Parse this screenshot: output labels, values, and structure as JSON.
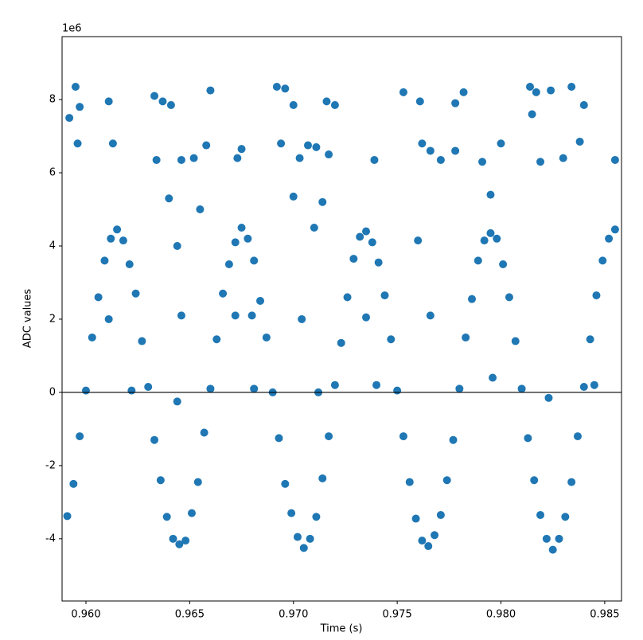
{
  "chart_data": {
    "type": "scatter",
    "xlabel": "Time (s)",
    "ylabel": "ADC values",
    "y_offset_label": "1e6",
    "color": "#1f77b4",
    "grid": false,
    "hline": 0,
    "xlim": [
      0.95885,
      0.98581
    ],
    "ylim": [
      -5.7,
      9.72
    ],
    "xticks": [
      {
        "value": 0.96,
        "label": "0.960"
      },
      {
        "value": 0.965,
        "label": "0.965"
      },
      {
        "value": 0.97,
        "label": "0.970"
      },
      {
        "value": 0.975,
        "label": "0.975"
      },
      {
        "value": 0.98,
        "label": "0.980"
      },
      {
        "value": 0.985,
        "label": "0.985"
      }
    ],
    "yticks": [
      -4,
      -2,
      0,
      2,
      4,
      6,
      8
    ],
    "x": [
      0.9591,
      0.9594,
      0.9597,
      0.96,
      0.9603,
      0.9606,
      0.9609,
      0.9612,
      0.9615,
      0.9618,
      0.9621,
      0.9624,
      0.9627,
      0.963,
      0.9633,
      0.9636,
      0.9639,
      0.9642,
      0.9645,
      0.9648,
      0.9651,
      0.9654,
      0.9657,
      0.966,
      0.9663,
      0.9666,
      0.9669,
      0.9672,
      0.9675,
      0.9678,
      0.9681,
      0.9684,
      0.9687,
      0.969,
      0.9693,
      0.9696,
      0.9699,
      0.9702,
      0.9705,
      0.9708,
      0.9711,
      0.9714,
      0.9717,
      0.972,
      0.9723,
      0.9726,
      0.9729,
      0.9732,
      0.9735,
      0.9738,
      0.9741,
      0.9744,
      0.9747,
      0.975,
      0.9753,
      0.9756,
      0.9759,
      0.9762,
      0.9765,
      0.9768,
      0.9771,
      0.9774,
      0.9777,
      0.978,
      0.9783,
      0.9786,
      0.9789,
      0.9792,
      0.9795,
      0.9798,
      0.9801,
      0.9804,
      0.9807,
      0.981,
      0.9813,
      0.9816,
      0.9819,
      0.9822,
      0.9825,
      0.9828,
      0.9831,
      0.9834,
      0.9837,
      0.984,
      0.9843,
      0.9846,
      0.9849,
      0.9852,
      0.9855,
      0.9592,
      0.9595,
      0.9597,
      0.9596,
      0.9611,
      0.9613,
      0.9633,
      0.9637,
      0.9641,
      0.9634,
      0.9646,
      0.9652,
      0.966,
      0.9658,
      0.9673,
      0.9675,
      0.9692,
      0.9696,
      0.97,
      0.9694,
      0.9703,
      0.9707,
      0.9711,
      0.9716,
      0.972,
      0.9717,
      0.9739,
      0.9753,
      0.9761,
      0.9762,
      0.9766,
      0.9771,
      0.9778,
      0.9778,
      0.9782,
      0.9791,
      0.98,
      0.9814,
      0.9817,
      0.9815,
      0.9819,
      0.9824,
      0.983,
      0.9834,
      0.9838,
      0.984,
      0.9855,
      0.9644,
      0.9646,
      0.964,
      0.9655,
      0.968,
      0.9672,
      0.9704,
      0.971,
      0.9714,
      0.97,
      0.9735,
      0.9766,
      0.9795,
      0.976,
      0.9622,
      0.9611,
      0.9681,
      0.974,
      0.9796,
      0.9845,
      0.9712,
      0.9823,
      0.9644
    ],
    "values": [
      -3.38,
      -2.5,
      -1.2,
      0.05,
      1.5,
      2.6,
      3.6,
      4.2,
      4.45,
      4.15,
      3.5,
      2.7,
      1.4,
      0.15,
      -1.3,
      -2.4,
      -3.4,
      -4.0,
      -4.15,
      -4.05,
      -3.3,
      -2.45,
      -1.1,
      0.1,
      1.45,
      2.7,
      3.5,
      4.1,
      4.5,
      4.2,
      3.6,
      2.5,
      1.5,
      0.0,
      -1.25,
      -2.5,
      -3.3,
      -3.95,
      -4.25,
      -4.0,
      -3.4,
      -2.35,
      -1.2,
      0.2,
      1.35,
      2.6,
      3.65,
      4.25,
      4.4,
      4.1,
      3.55,
      2.65,
      1.45,
      0.05,
      -1.2,
      -2.45,
      -3.45,
      -4.05,
      -4.2,
      -3.9,
      -3.35,
      -2.4,
      -1.3,
      0.1,
      1.5,
      2.55,
      3.6,
      4.15,
      4.35,
      4.2,
      3.5,
      2.6,
      1.4,
      0.1,
      -1.25,
      -2.4,
      -3.35,
      -4.0,
      -4.3,
      -4.0,
      -3.4,
      -2.45,
      -1.2,
      0.15,
      1.45,
      2.65,
      3.6,
      4.2,
      4.45,
      7.5,
      8.35,
      7.8,
      6.8,
      7.95,
      6.8,
      8.1,
      7.95,
      7.85,
      6.35,
      6.35,
      6.4,
      8.25,
      6.75,
      6.4,
      6.65,
      8.35,
      8.3,
      7.85,
      6.8,
      6.4,
      6.75,
      6.7,
      7.95,
      7.85,
      6.5,
      6.35,
      8.2,
      7.95,
      6.8,
      6.6,
      6.35,
      6.6,
      7.9,
      8.2,
      6.3,
      6.8,
      8.35,
      8.2,
      7.6,
      6.3,
      8.25,
      6.4,
      8.35,
      6.85,
      7.85,
      6.35,
      4.0,
      2.1,
      5.3,
      5.0,
      2.1,
      2.1,
      2.0,
      4.5,
      5.2,
      5.35,
      2.05,
      2.1,
      5.4,
      4.15,
      0.05,
      2.0,
      0.1,
      0.2,
      0.4,
      0.2,
      0.0,
      -0.15,
      -0.25
    ]
  }
}
